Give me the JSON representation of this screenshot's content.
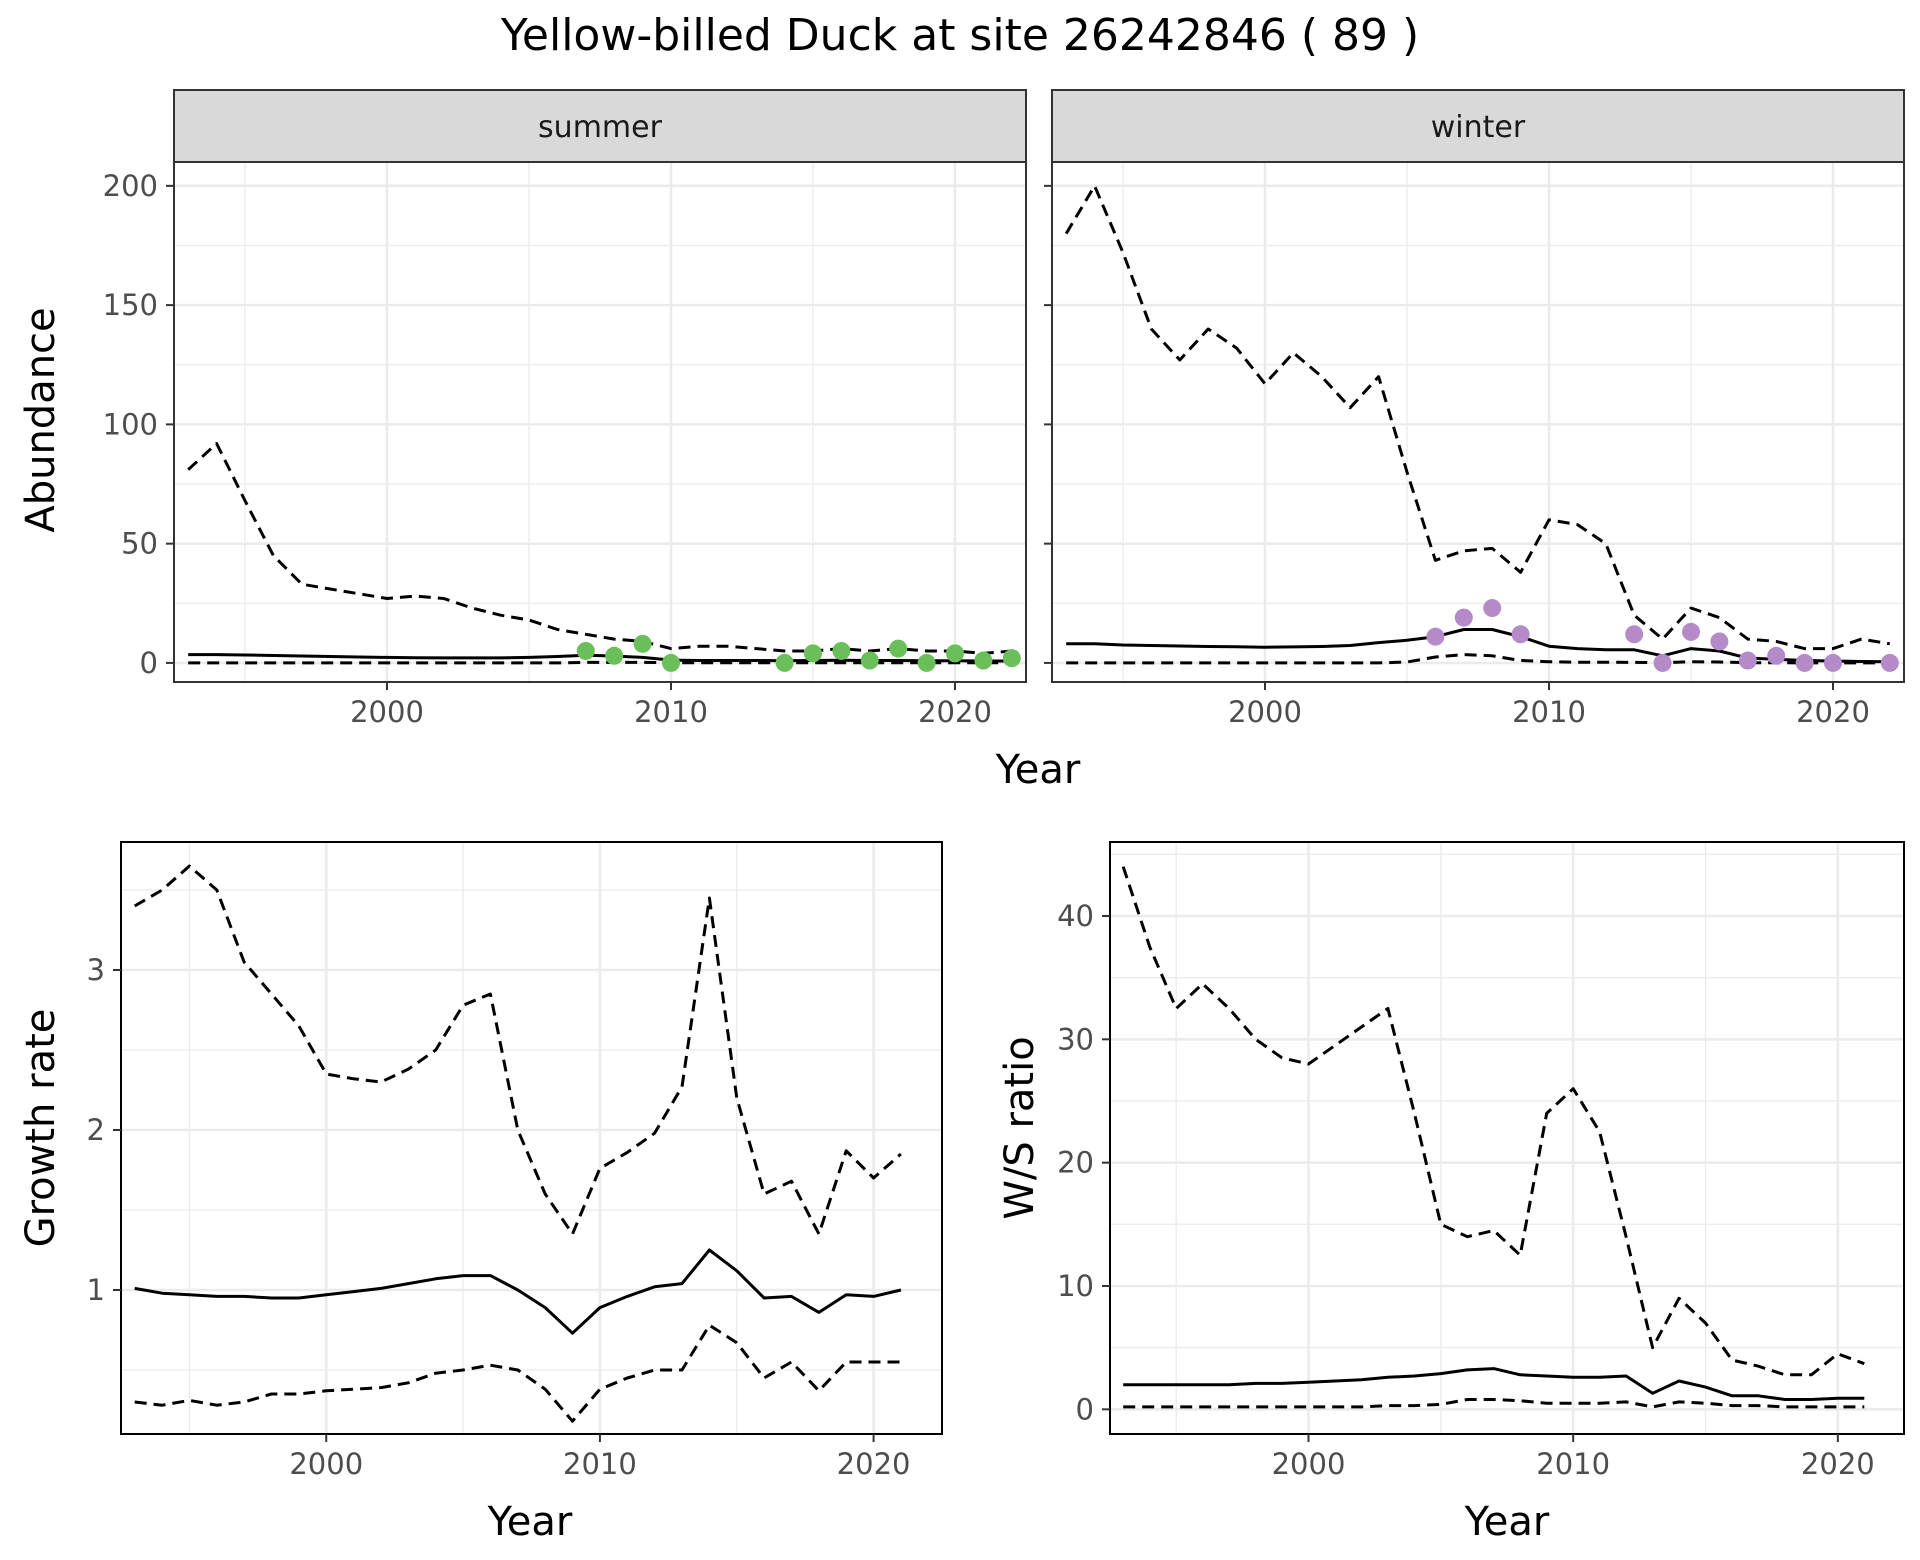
{
  "title": "Yellow-billed Duck at site 26242846 ( 89 )",
  "colors": {
    "summer_points": "#6abf5a",
    "winter_points": "#b48ac8",
    "lines": "#000000",
    "grid": "#ebebeb",
    "strip": "#d9d9d9"
  },
  "chart_data": [
    {
      "id": "summer",
      "type": "line",
      "strip_label": "summer",
      "ylabel": "Abundance",
      "xlabel": "Year",
      "xlim": [
        1992.5,
        2022.5
      ],
      "ylim": [
        -8,
        210
      ],
      "x_ticks": [
        2000,
        2010,
        2020
      ],
      "y_ticks": [
        0,
        50,
        100,
        150,
        200
      ],
      "grid": true,
      "x": [
        1993,
        1994,
        1995,
        1996,
        1997,
        1998,
        1999,
        2000,
        2001,
        2002,
        2003,
        2004,
        2005,
        2006,
        2007,
        2008,
        2009,
        2010,
        2011,
        2012,
        2013,
        2014,
        2015,
        2016,
        2017,
        2018,
        2019,
        2020,
        2021,
        2022
      ],
      "series": [
        {
          "style": "solid",
          "values": [
            3.5,
            3.5,
            3.3,
            3.1,
            2.9,
            2.7,
            2.5,
            2.3,
            2.2,
            2.1,
            2.1,
            2.1,
            2.3,
            2.7,
            3.2,
            2.9,
            2.3,
            1.2,
            1.0,
            1.0,
            1.0,
            0.9,
            1.0,
            1.1,
            1.0,
            1.0,
            0.9,
            0.9,
            0.8,
            0.8
          ]
        },
        {
          "style": "dashed",
          "values": [
            81,
            92,
            68,
            45,
            33,
            31,
            29,
            27,
            28,
            27,
            23,
            20,
            18,
            14,
            12,
            10,
            9,
            6,
            7,
            7,
            6,
            5,
            5,
            6,
            5,
            6,
            5,
            5,
            4,
            5
          ]
        },
        {
          "style": "dashed",
          "values": [
            0,
            0,
            0,
            0,
            0,
            0,
            0,
            0,
            0,
            0,
            0,
            0,
            0,
            0,
            0.2,
            0.2,
            0.2,
            0.1,
            0.1,
            0.1,
            0.1,
            0.1,
            0.1,
            0.1,
            0.1,
            0.1,
            0.1,
            0.1,
            0.1,
            0.1
          ]
        }
      ],
      "points": {
        "x": [
          2007,
          2008,
          2009,
          2010,
          2014,
          2015,
          2016,
          2017,
          2018,
          2019,
          2020,
          2021,
          2022
        ],
        "y": [
          5,
          3,
          8,
          0,
          0,
          4,
          5,
          1,
          6,
          0,
          4,
          1,
          2
        ]
      }
    },
    {
      "id": "winter",
      "type": "line",
      "strip_label": "winter",
      "xlabel": "Year",
      "xlim": [
        1992.5,
        2022.5
      ],
      "ylim": [
        -8,
        210
      ],
      "x_ticks": [
        2000,
        2010,
        2020
      ],
      "y_ticks": [
        0,
        50,
        100,
        150,
        200
      ],
      "grid": true,
      "x": [
        1993,
        1994,
        1995,
        1996,
        1997,
        1998,
        1999,
        2000,
        2001,
        2002,
        2003,
        2004,
        2005,
        2006,
        2007,
        2008,
        2009,
        2010,
        2011,
        2012,
        2013,
        2014,
        2015,
        2016,
        2017,
        2018,
        2019,
        2020,
        2021,
        2022
      ],
      "series": [
        {
          "style": "solid",
          "values": [
            8,
            8,
            7.5,
            7.3,
            7.1,
            6.9,
            6.8,
            6.6,
            6.7,
            6.9,
            7.3,
            8.5,
            9.5,
            11,
            14,
            14,
            11,
            7,
            6,
            5.5,
            5.5,
            3,
            6,
            5,
            2,
            1.5,
            1,
            0.8,
            0.6,
            0.5
          ]
        },
        {
          "style": "dashed",
          "values": [
            180,
            200,
            172,
            140,
            127,
            140,
            132,
            117,
            130,
            120,
            107,
            120,
            80,
            43,
            47,
            48,
            38,
            60,
            58,
            50,
            20,
            10,
            23,
            19,
            10,
            9,
            6,
            6,
            10,
            8
          ]
        },
        {
          "style": "dashed",
          "values": [
            0,
            0,
            0,
            0,
            0,
            0,
            0,
            0,
            0,
            0,
            0,
            0,
            0.4,
            2.5,
            3.5,
            3,
            1,
            0.5,
            0.3,
            0.3,
            0.2,
            0.1,
            0.5,
            0.4,
            0.1,
            0.1,
            0,
            0,
            0,
            0
          ]
        }
      ],
      "points": {
        "x": [
          2006,
          2007,
          2008,
          2009,
          2013,
          2014,
          2015,
          2016,
          2017,
          2018,
          2019,
          2020,
          2022
        ],
        "y": [
          11,
          19,
          23,
          12,
          12,
          0,
          13,
          9,
          1,
          3,
          0,
          0,
          0
        ]
      }
    },
    {
      "id": "growth",
      "type": "line",
      "ylabel": "Growth rate",
      "xlabel": "Year",
      "xlim": [
        1992.5,
        2022.5
      ],
      "ylim": [
        0.1,
        3.8
      ],
      "x_ticks": [
        2000,
        2010,
        2020
      ],
      "y_ticks": [
        1,
        2,
        3
      ],
      "grid": true,
      "x": [
        1993,
        1994,
        1995,
        1996,
        1997,
        1998,
        1999,
        2000,
        2001,
        2002,
        2003,
        2004,
        2005,
        2006,
        2007,
        2008,
        2009,
        2010,
        2011,
        2012,
        2013,
        2014,
        2015,
        2016,
        2017,
        2018,
        2019,
        2020,
        2021
      ],
      "series": [
        {
          "style": "solid",
          "values": [
            1.01,
            0.98,
            0.97,
            0.96,
            0.96,
            0.95,
            0.95,
            0.97,
            0.99,
            1.01,
            1.04,
            1.07,
            1.09,
            1.09,
            1.0,
            0.89,
            0.73,
            0.89,
            0.96,
            1.02,
            1.04,
            1.25,
            1.12,
            0.95,
            0.96,
            0.86,
            0.97,
            0.96,
            1.0
          ]
        },
        {
          "style": "dashed",
          "values": [
            3.4,
            3.5,
            3.65,
            3.5,
            3.05,
            2.85,
            2.65,
            2.35,
            2.32,
            2.3,
            2.38,
            2.5,
            2.78,
            2.85,
            2.0,
            1.6,
            1.35,
            1.76,
            1.86,
            1.98,
            2.27,
            3.45,
            2.2,
            1.6,
            1.68,
            1.35,
            1.87,
            1.7,
            1.85
          ]
        },
        {
          "style": "dashed",
          "values": [
            0.3,
            0.28,
            0.31,
            0.28,
            0.3,
            0.35,
            0.35,
            0.37,
            0.38,
            0.39,
            0.42,
            0.48,
            0.5,
            0.53,
            0.5,
            0.38,
            0.18,
            0.38,
            0.45,
            0.5,
            0.5,
            0.78,
            0.67,
            0.45,
            0.55,
            0.37,
            0.55,
            0.55,
            0.55
          ]
        }
      ]
    },
    {
      "id": "wsratio",
      "type": "line",
      "ylabel": "W/S ratio",
      "xlabel": "Year",
      "xlim": [
        1992.5,
        2022.5
      ],
      "ylim": [
        -2,
        46
      ],
      "x_ticks": [
        2000,
        2010,
        2020
      ],
      "y_ticks": [
        0,
        10,
        20,
        30,
        40
      ],
      "grid": true,
      "x": [
        1993,
        1994,
        1995,
        1996,
        1997,
        1998,
        1999,
        2000,
        2001,
        2002,
        2003,
        2004,
        2005,
        2006,
        2007,
        2008,
        2009,
        2010,
        2011,
        2012,
        2013,
        2014,
        2015,
        2016,
        2017,
        2018,
        2019,
        2020,
        2021
      ],
      "series": [
        {
          "style": "solid",
          "values": [
            2.0,
            2.0,
            2.0,
            2.0,
            2.0,
            2.1,
            2.1,
            2.2,
            2.3,
            2.4,
            2.6,
            2.7,
            2.9,
            3.2,
            3.3,
            2.8,
            2.7,
            2.6,
            2.6,
            2.7,
            1.3,
            2.3,
            1.8,
            1.1,
            1.1,
            0.8,
            0.8,
            0.9,
            0.9
          ]
        },
        {
          "style": "dashed",
          "values": [
            44,
            37.5,
            32.5,
            34.5,
            32.5,
            30,
            28.5,
            28,
            29.5,
            31,
            32.5,
            24,
            15,
            14,
            14.5,
            12.5,
            24,
            26,
            22.5,
            14,
            5,
            9,
            7,
            4,
            3.5,
            2.8,
            2.8,
            4.5,
            3.7
          ]
        },
        {
          "style": "dashed",
          "values": [
            0.2,
            0.2,
            0.2,
            0.2,
            0.2,
            0.2,
            0.2,
            0.2,
            0.2,
            0.2,
            0.3,
            0.3,
            0.4,
            0.8,
            0.8,
            0.7,
            0.5,
            0.5,
            0.5,
            0.6,
            0.2,
            0.6,
            0.5,
            0.3,
            0.3,
            0.2,
            0.2,
            0.2,
            0.2
          ]
        }
      ]
    }
  ]
}
